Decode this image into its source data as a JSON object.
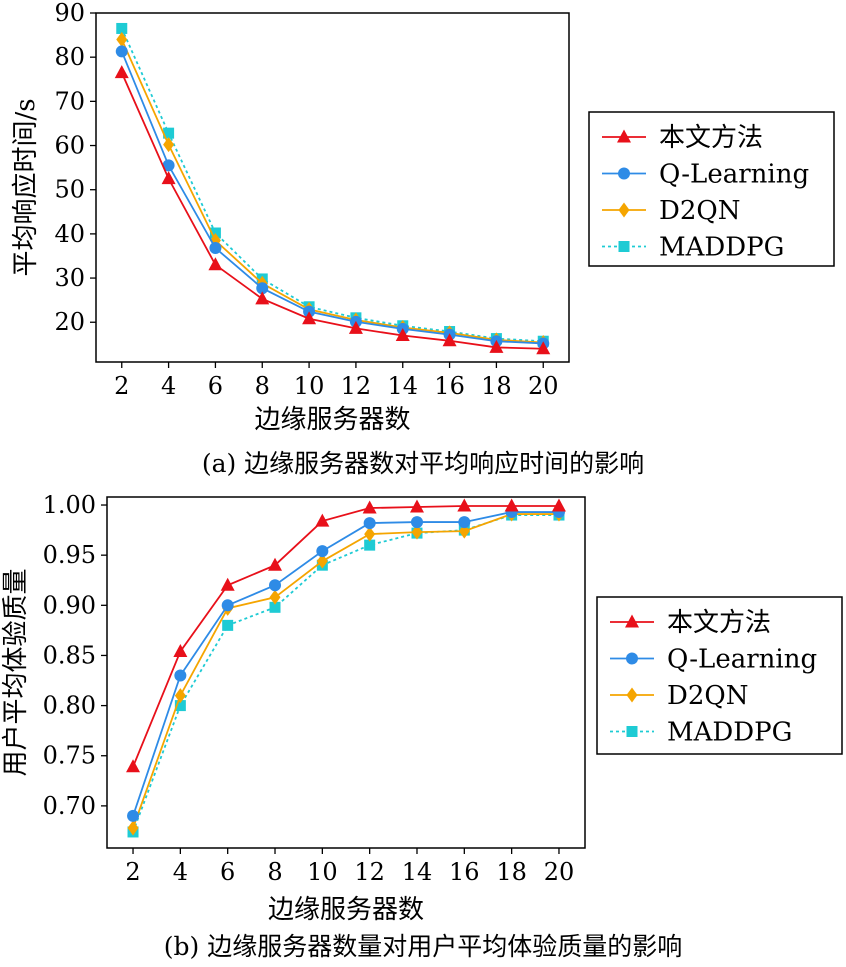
{
  "chart_data": [
    {
      "type": "line",
      "caption": "(a) 边缘服务器数对平均响应时间的影响",
      "xlabel": "边缘服务器数",
      "ylabel": "平均响应时间/s",
      "x": [
        2,
        4,
        6,
        8,
        10,
        12,
        14,
        16,
        18,
        20
      ],
      "xticks": [
        "2",
        "4",
        "6",
        "8",
        "10",
        "12",
        "14",
        "16",
        "18",
        "20"
      ],
      "yticks": [
        "20",
        "30",
        "40",
        "50",
        "60",
        "70",
        "80",
        "90"
      ],
      "ylim": [
        11,
        90
      ],
      "grid": false,
      "legend": "right",
      "series": [
        {
          "name": "本文方法",
          "color": "#e8101a",
          "marker": "triangle",
          "dash": "solid",
          "values": [
            76.5,
            52.5,
            33.0,
            25.3,
            20.8,
            18.6,
            17.0,
            15.8,
            14.3,
            14.0
          ]
        },
        {
          "name": "Q-Learning",
          "color": "#2e8be6",
          "marker": "circle",
          "dash": "solid",
          "values": [
            81.3,
            55.5,
            36.8,
            27.7,
            22.4,
            20.1,
            18.5,
            17.2,
            15.7,
            15.2
          ]
        },
        {
          "name": "D2QN",
          "color": "#f5a500",
          "marker": "diamond",
          "dash": "solid",
          "values": [
            84.0,
            60.2,
            38.5,
            28.8,
            22.9,
            20.5,
            18.8,
            17.6,
            16.0,
            15.4
          ]
        },
        {
          "name": "MADDPG",
          "color": "#1ecbd4",
          "marker": "square",
          "dash": "dotted",
          "values": [
            86.5,
            62.8,
            40.2,
            29.8,
            23.5,
            21.0,
            19.2,
            17.9,
            16.3,
            15.7
          ]
        }
      ]
    },
    {
      "type": "line",
      "caption": "(b) 边缘服务器数量对用户平均体验质量的影响",
      "xlabel": "边缘服务器数",
      "ylabel": "用户平均体验质量",
      "x": [
        2,
        4,
        6,
        8,
        10,
        12,
        14,
        16,
        18,
        20
      ],
      "xticks": [
        "2",
        "4",
        "6",
        "8",
        "10",
        "12",
        "14",
        "16",
        "18",
        "20"
      ],
      "yticks": [
        "0.70",
        "0.75",
        "0.80",
        "0.85",
        "0.90",
        "0.95",
        "1.00"
      ],
      "ylim": [
        0.658,
        1.008
      ],
      "grid": false,
      "legend": "right",
      "series": [
        {
          "name": "本文方法",
          "color": "#e8101a",
          "marker": "triangle",
          "dash": "solid",
          "values": [
            0.739,
            0.854,
            0.92,
            0.94,
            0.984,
            0.997,
            0.998,
            0.999,
            0.999,
            0.999
          ]
        },
        {
          "name": "Q-Learning",
          "color": "#2e8be6",
          "marker": "circle",
          "dash": "solid",
          "values": [
            0.69,
            0.83,
            0.9,
            0.92,
            0.954,
            0.982,
            0.983,
            0.983,
            0.993,
            0.993
          ]
        },
        {
          "name": "D2QN",
          "color": "#f5a500",
          "marker": "diamond",
          "dash": "solid",
          "values": [
            0.678,
            0.81,
            0.897,
            0.908,
            0.944,
            0.971,
            0.973,
            0.974,
            0.991,
            0.991
          ]
        },
        {
          "name": "MADDPG",
          "color": "#1ecbd4",
          "marker": "square",
          "dash": "dotted",
          "values": [
            0.674,
            0.8,
            0.88,
            0.898,
            0.94,
            0.96,
            0.972,
            0.975,
            0.99,
            0.99
          ]
        }
      ]
    }
  ]
}
